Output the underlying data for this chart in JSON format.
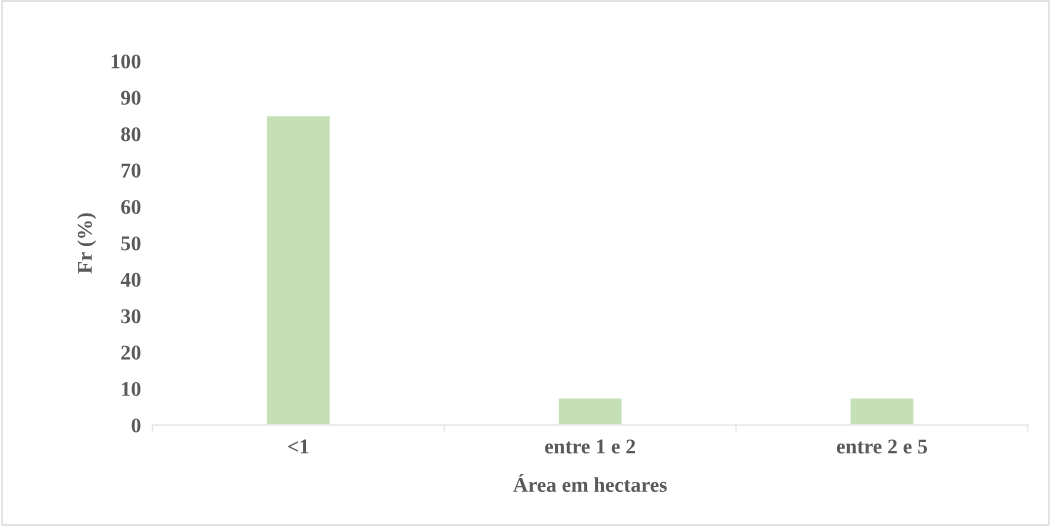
{
  "chart_data": {
    "type": "bar",
    "xlabel": "Área em hectares",
    "ylabel": "Fr (%)",
    "categories": [
      "<1",
      "entre 1 e 2",
      "entre 2 e 5"
    ],
    "values": [
      85,
      7.5,
      7.5
    ],
    "color": "#c5e0b4",
    "ylim": [
      0,
      100
    ],
    "yticks": [
      0,
      10,
      20,
      30,
      40,
      50,
      60,
      70,
      80,
      90,
      100
    ],
    "grid": false
  }
}
